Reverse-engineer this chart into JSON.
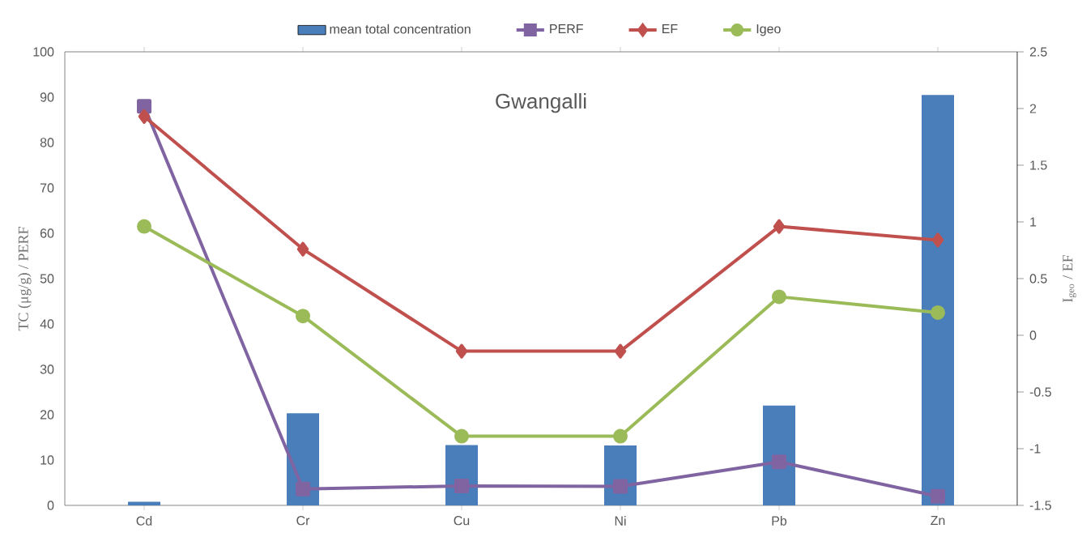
{
  "chart_data": {
    "type": "bar",
    "title": "Gwangalli",
    "ylabel": "TC (μg/g) / PERF",
    "y2label": "I$_{geo}$ / EF",
    "categories": [
      "Cd",
      "Cr",
      "Cu",
      "Ni",
      "Pb",
      "Zn"
    ],
    "series": [
      {
        "name": "mean total concentration",
        "color": "#4a7ebb",
        "values": [
          0.8,
          20.3,
          13.3,
          13.2,
          22,
          90.5
        ]
      },
      {
        "name": "PERF",
        "type": "line",
        "marker": "square",
        "color": "#8064a2",
        "values": [
          88,
          3.6,
          4.3,
          4.2,
          9.6,
          2
        ]
      },
      {
        "name": "EF",
        "type": "line",
        "marker": "diamond",
        "axis": "y2",
        "color": "#c0504d",
        "values": [
          1.93,
          0.76,
          -0.14,
          -0.14,
          0.96,
          0.84
        ]
      },
      {
        "name": "Igeo",
        "type": "line",
        "marker": "circle",
        "axis": "y2",
        "color": "#9bbb59",
        "values": [
          0.96,
          0.17,
          -0.89,
          -0.89,
          0.34,
          0.2
        ]
      }
    ],
    "ylim": [
      0,
      100
    ],
    "yticks": [
      0,
      10,
      20,
      30,
      40,
      50,
      60,
      70,
      80,
      90,
      100
    ],
    "y2lim": [
      -1.5,
      2.5
    ],
    "y2ticks": [
      -1.5,
      -1,
      -0.5,
      0,
      0.5,
      1,
      1.5,
      2,
      2.5
    ],
    "legend": "top",
    "grid": false
  }
}
